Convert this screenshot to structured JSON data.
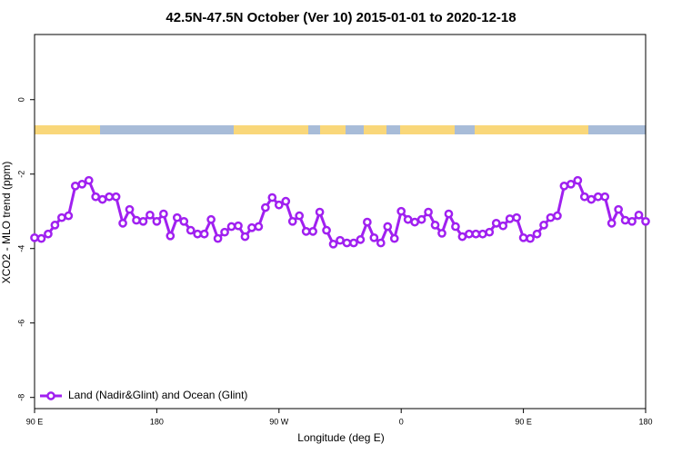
{
  "chart_data": {
    "type": "line",
    "title": "42.5N-47.5N October (Ver 10)   2015-01-01 to 2020-12-18",
    "x_label": "Longitude (deg E)",
    "y_label": "XCO2 - MLO trend (ppm)",
    "x": [
      90,
      95,
      100,
      105,
      110,
      115,
      120,
      125,
      130,
      135,
      140,
      145,
      150,
      155,
      160,
      165,
      170,
      175,
      180,
      185,
      190,
      195,
      200,
      205,
      210,
      215,
      220,
      225,
      230,
      235,
      240,
      245,
      250,
      255,
      260,
      265,
      270,
      275,
      280,
      285,
      290,
      295,
      300,
      305,
      310,
      315,
      320,
      325,
      330,
      335,
      340,
      345,
      350,
      355,
      360,
      365,
      370,
      375,
      380,
      385,
      390,
      395,
      400,
      405,
      410,
      415,
      420,
      425,
      430,
      435,
      440,
      445,
      450,
      455,
      460,
      465,
      470,
      475,
      480,
      485,
      490,
      495,
      500,
      505,
      510,
      515,
      520,
      525,
      530,
      535,
      540
    ],
    "series": [
      {
        "name": "Land (Nadir&Glint) and Ocean (Glint)",
        "color": "#a020f0",
        "values": [
          -3.71,
          -3.73,
          -3.61,
          -3.37,
          -3.17,
          -3.12,
          -2.32,
          -2.27,
          -2.17,
          -2.61,
          -2.68,
          -2.61,
          -2.61,
          -3.32,
          -2.95,
          -3.24,
          -3.27,
          -3.1,
          -3.27,
          -3.07,
          -3.66,
          -3.17,
          -3.27,
          -3.51,
          -3.61,
          -3.61,
          -3.22,
          -3.73,
          -3.56,
          -3.41,
          -3.39,
          -3.68,
          -3.44,
          -3.41,
          -2.9,
          -2.63,
          -2.83,
          -2.73,
          -3.27,
          -3.12,
          -3.54,
          -3.54,
          -3.02,
          -3.51,
          -3.88,
          -3.78,
          -3.85,
          -3.85,
          -3.76,
          -3.29,
          -3.71,
          -3.85,
          -3.41,
          -3.73,
          -3.0,
          -3.22,
          -3.29,
          -3.22,
          -3.02,
          -3.37,
          -3.59,
          -3.07,
          -3.41,
          -3.68,
          -3.61,
          -3.61,
          -3.61,
          -3.56,
          -3.32,
          -3.39,
          -3.2,
          -3.17,
          -3.71,
          -3.73,
          -3.61,
          -3.37,
          -3.17,
          -3.12,
          -2.32,
          -2.27,
          -2.17,
          -2.61,
          -2.68,
          -2.61,
          -2.61,
          -3.32,
          -2.95,
          -3.24,
          -3.27,
          -3.1,
          -3.27
        ]
      }
    ],
    "xlim": [
      90,
      540
    ],
    "xticks": [
      {
        "value": 90,
        "label": "90 E"
      },
      {
        "value": 180,
        "label": "180"
      },
      {
        "value": 270,
        "label": "90 W"
      },
      {
        "value": 360,
        "label": "0"
      },
      {
        "value": 450,
        "label": "90 E"
      },
      {
        "value": 540,
        "label": "180"
      }
    ],
    "ylim": [
      -8.3,
      1.75
    ],
    "yticks": [
      0,
      -2,
      -4,
      -6,
      -8
    ],
    "legend": "bottom-left"
  }
}
